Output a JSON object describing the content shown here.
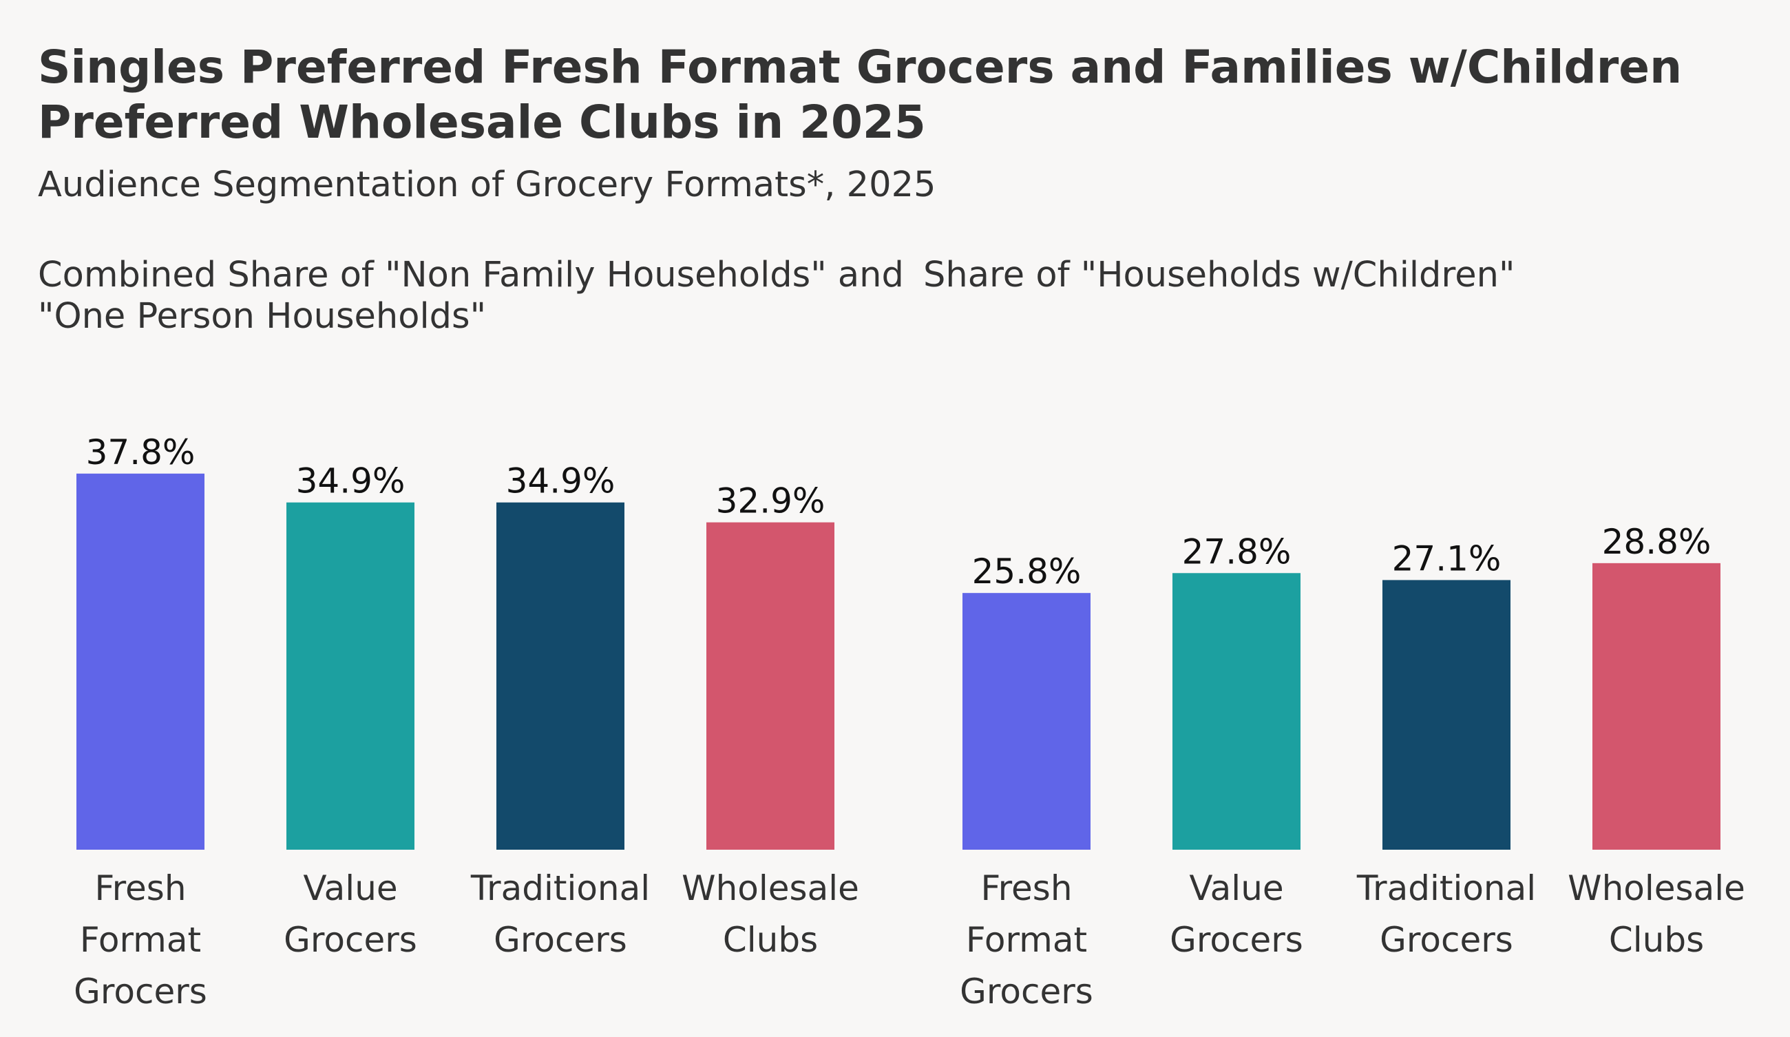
{
  "title": "Singles Preferred Fresh Format Grocers and Families w/Children Preferred Wholesale Clubs in 2025",
  "subtitle": "Audience Segmentation of Grocery Formats*, 2025",
  "chart_data": [
    {
      "type": "bar",
      "title": "Combined Share of \"Non Family Households\" and \"One Person Households\"",
      "categories": [
        [
          "Fresh",
          "Format",
          "Grocers"
        ],
        [
          "Value",
          "Grocers"
        ],
        [
          "Traditional",
          "Grocers"
        ],
        [
          "Wholesale",
          "Clubs"
        ]
      ],
      "values": [
        37.8,
        34.9,
        34.9,
        32.9
      ],
      "value_labels": [
        "37.8%",
        "34.9%",
        "34.9%",
        "32.9%"
      ],
      "colors": [
        "#6065e8",
        "#1ca0a0",
        "#134a6b",
        "#d3566d"
      ],
      "grid": false,
      "legend": "none"
    },
    {
      "type": "bar",
      "title": "Share of \"Households w/Children\"",
      "categories": [
        [
          "Fresh",
          "Format",
          "Grocers"
        ],
        [
          "Value",
          "Grocers"
        ],
        [
          "Traditional",
          "Grocers"
        ],
        [
          "Wholesale",
          "Clubs"
        ]
      ],
      "values": [
        25.8,
        27.8,
        27.1,
        28.8
      ],
      "value_labels": [
        "25.8%",
        "27.8%",
        "27.1%",
        "28.8%"
      ],
      "colors": [
        "#6065e8",
        "#1ca0a0",
        "#134a6b",
        "#d3566d"
      ],
      "grid": false,
      "legend": "none"
    }
  ]
}
